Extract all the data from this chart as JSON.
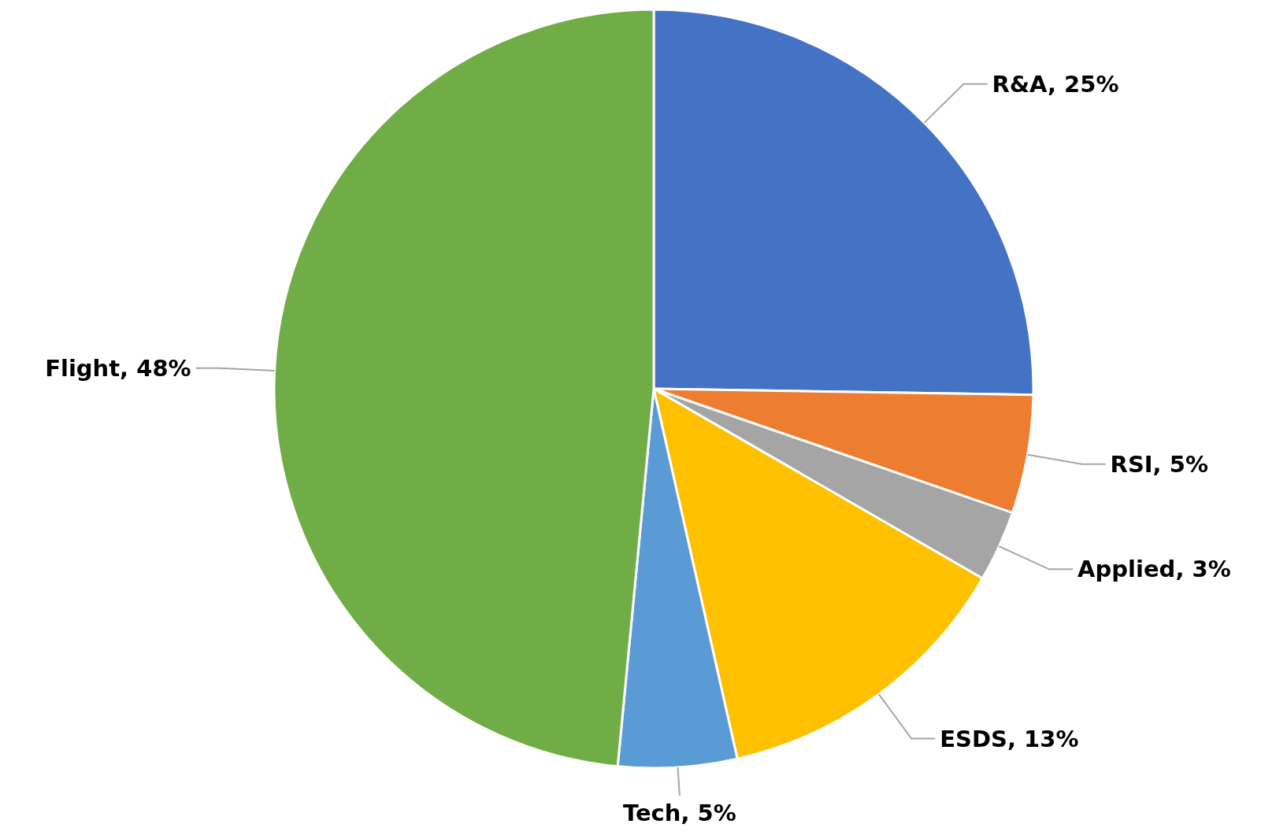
{
  "chart_data": {
    "type": "pie",
    "categories": [
      "R&A",
      "RSI",
      "Applied",
      "ESDS",
      "Tech",
      "Flight"
    ],
    "values": [
      25,
      5,
      3,
      13,
      5,
      48
    ],
    "colors": [
      "#4472c4",
      "#ed7d31",
      "#a5a5a5",
      "#ffc000",
      "#5b9bd5",
      "#70ad47"
    ],
    "value_labels": [
      "25%",
      "5%",
      "3%",
      "13%",
      "5%",
      "48%"
    ]
  }
}
